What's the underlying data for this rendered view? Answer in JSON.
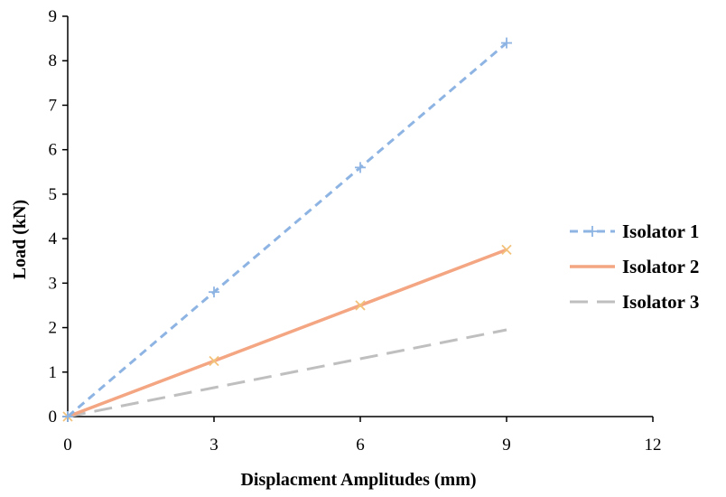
{
  "chart_data": {
    "type": "line",
    "title": "",
    "xlabel": "Displacment Amplitudes  (mm)",
    "ylabel": "Load (kN)",
    "x": [
      0,
      3,
      6,
      9
    ],
    "xlim": [
      0,
      12
    ],
    "ylim": [
      0,
      9
    ],
    "xticks": [
      0,
      3,
      6,
      9,
      12
    ],
    "yticks": [
      0,
      1,
      2,
      3,
      4,
      5,
      6,
      7,
      8,
      9
    ],
    "grid": false,
    "legend": "right",
    "series": [
      {
        "name": "Isolator 1",
        "values": [
          0,
          2.8,
          5.6,
          8.4
        ],
        "color": "#8eb4e3",
        "style": "dashed",
        "marker": "plus"
      },
      {
        "name": "Isolator 2",
        "values": [
          0,
          1.25,
          2.5,
          3.75
        ],
        "color": "#f4a582",
        "style": "solid",
        "marker": "x"
      },
      {
        "name": "Isolator 3",
        "values": [
          0,
          0.65,
          1.3,
          1.95
        ],
        "color": "#bfbfbf",
        "style": "long-dashed",
        "marker": "none"
      }
    ]
  }
}
